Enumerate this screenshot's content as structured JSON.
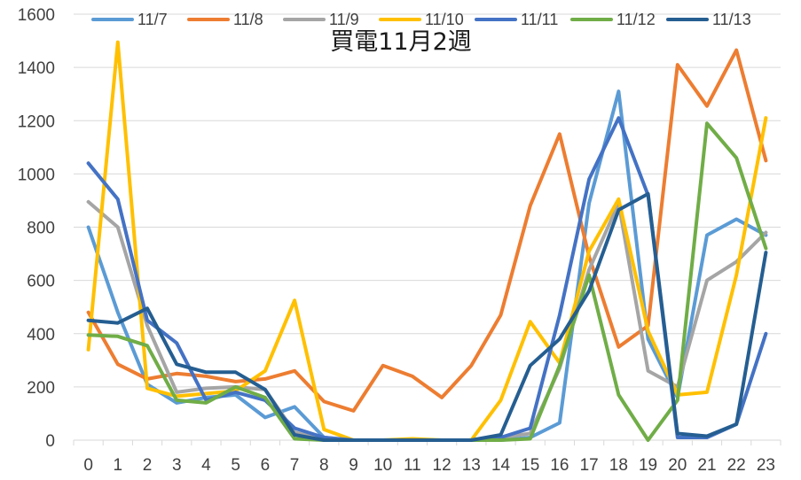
{
  "chart_data": {
    "type": "line",
    "title": "買電11月2週",
    "xlabel": "",
    "ylabel": "",
    "ylim": [
      0,
      1600
    ],
    "yticks": [
      0,
      200,
      400,
      600,
      800,
      1000,
      1200,
      1400,
      1600
    ],
    "grid": true,
    "legend_position": "top",
    "x": [
      0,
      1,
      2,
      3,
      4,
      5,
      6,
      7,
      8,
      9,
      10,
      11,
      12,
      13,
      14,
      15,
      16,
      17,
      18,
      19,
      20,
      21,
      22,
      23
    ],
    "series": [
      {
        "name": "11/7",
        "color": "#5b9bd5",
        "values": [
          800,
          480,
          210,
          140,
          160,
          170,
          85,
          125,
          10,
          0,
          0,
          0,
          0,
          0,
          0,
          10,
          65,
          890,
          1310,
          380,
          160,
          770,
          830,
          770
        ]
      },
      {
        "name": "11/8",
        "color": "#ed7d31",
        "values": [
          480,
          285,
          230,
          250,
          240,
          220,
          230,
          260,
          145,
          110,
          280,
          240,
          160,
          280,
          470,
          880,
          1150,
          690,
          350,
          430,
          1410,
          1255,
          1465,
          1050
        ]
      },
      {
        "name": "11/9",
        "color": "#a5a5a5",
        "values": [
          895,
          800,
          430,
          180,
          195,
          200,
          190,
          30,
          0,
          0,
          0,
          0,
          0,
          0,
          10,
          25,
          270,
          640,
          890,
          260,
          200,
          600,
          670,
          780
        ]
      },
      {
        "name": "11/10",
        "color": "#ffc000",
        "values": [
          340,
          1495,
          195,
          165,
          175,
          185,
          260,
          525,
          40,
          0,
          0,
          5,
          0,
          0,
          150,
          445,
          290,
          710,
          905,
          410,
          170,
          180,
          620,
          1210
        ]
      },
      {
        "name": "11/11",
        "color": "#4472c4",
        "values": [
          1040,
          905,
          450,
          365,
          150,
          180,
          150,
          45,
          10,
          0,
          0,
          0,
          0,
          0,
          10,
          45,
          470,
          980,
          1210,
          920,
          10,
          10,
          60,
          400
        ]
      },
      {
        "name": "11/12",
        "color": "#70ad47",
        "values": [
          395,
          390,
          355,
          150,
          140,
          200,
          160,
          5,
          0,
          0,
          0,
          0,
          0,
          0,
          0,
          5,
          280,
          620,
          170,
          0,
          150,
          1190,
          1060,
          720
        ]
      },
      {
        "name": "11/13",
        "color": "#255e91",
        "values": [
          450,
          440,
          495,
          285,
          255,
          255,
          190,
          20,
          0,
          0,
          0,
          0,
          0,
          0,
          20,
          280,
          380,
          560,
          865,
          925,
          25,
          15,
          60,
          705
        ]
      }
    ]
  }
}
